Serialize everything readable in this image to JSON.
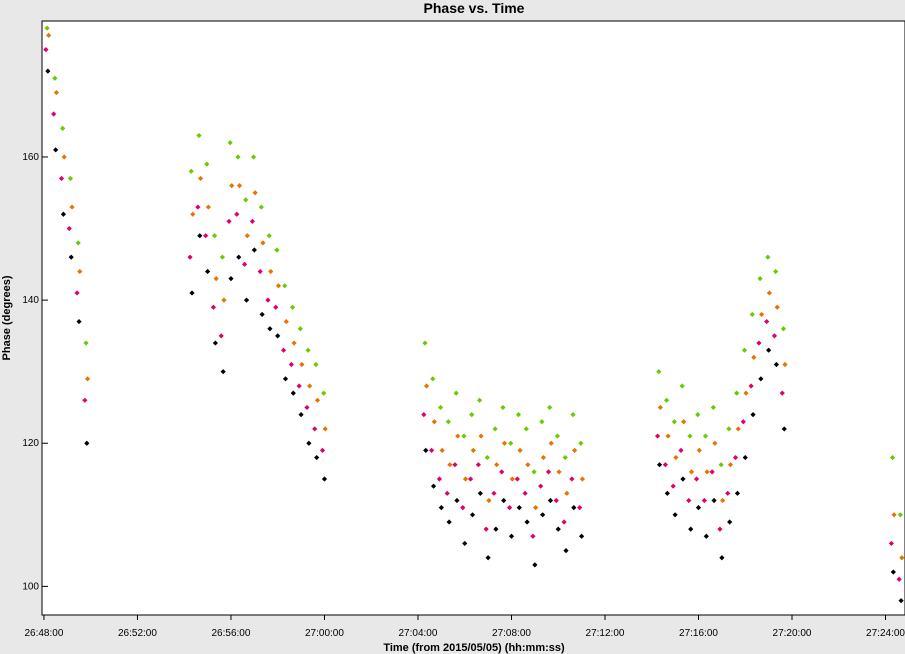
{
  "chart_data": {
    "type": "scatter",
    "title": "Phase vs. Time",
    "xlabel": "Time (from 2015/05/05) (hh:mm:ss)",
    "ylabel": "Phase (degrees)",
    "x_unit": "hh:mm:ss",
    "xlim": [
      "26:47:55",
      "27:24:50"
    ],
    "ylim": [
      96,
      179
    ],
    "x_ticks": [
      "26:48:00",
      "26:52:00",
      "26:56:00",
      "27:00:00",
      "27:04:00",
      "27:08:00",
      "27:12:00",
      "27:16:00",
      "27:20:00",
      "27:24:00"
    ],
    "y_ticks": [
      100,
      120,
      140,
      160
    ],
    "grid": false,
    "series_colors": [
      "#000000",
      "#e0006a",
      "#e87400",
      "#66cc00"
    ],
    "series": [
      {
        "color": "#000000",
        "x": [
          "26:48:10",
          "26:48:30",
          "26:48:50",
          "26:49:10",
          "26:49:30",
          "26:49:50",
          "26:54:20",
          "26:54:40",
          "26:55:00",
          "26:55:20",
          "26:55:40",
          "26:56:00",
          "26:56:20",
          "26:56:40",
          "26:57:00",
          "26:57:20",
          "26:57:40",
          "26:58:00",
          "26:58:20",
          "26:58:40",
          "26:59:00",
          "26:59:20",
          "26:59:40",
          "27:00:00",
          "27:04:20",
          "27:04:40",
          "27:05:00",
          "27:05:20",
          "27:05:40",
          "27:06:00",
          "27:06:20",
          "27:06:40",
          "27:07:00",
          "27:07:20",
          "27:07:40",
          "27:08:00",
          "27:08:20",
          "27:08:40",
          "27:09:00",
          "27:09:20",
          "27:09:40",
          "27:10:00",
          "27:10:20",
          "27:10:40",
          "27:11:00",
          "27:14:20",
          "27:14:40",
          "27:15:00",
          "27:15:20",
          "27:15:40",
          "27:16:00",
          "27:16:20",
          "27:16:40",
          "27:17:00",
          "27:17:20",
          "27:17:40",
          "27:18:00",
          "27:18:20",
          "27:18:40",
          "27:19:00",
          "27:19:20",
          "27:19:40",
          "27:24:20",
          "27:24:40"
        ],
        "y": [
          172,
          161,
          152,
          146,
          137,
          120,
          141,
          149,
          144,
          134,
          130,
          143,
          146,
          140,
          147,
          138,
          136,
          135,
          129,
          127,
          124,
          120,
          118,
          115,
          119,
          114,
          111,
          109,
          112,
          106,
          110,
          113,
          104,
          108,
          112,
          107,
          111,
          109,
          103,
          110,
          112,
          108,
          105,
          111,
          107,
          117,
          113,
          110,
          115,
          108,
          111,
          107,
          112,
          104,
          109,
          113,
          118,
          124,
          129,
          133,
          131,
          122,
          102,
          98
        ]
      },
      {
        "color": "#e0006a",
        "x": [
          "26:48:05",
          "26:48:25",
          "26:48:45",
          "26:49:05",
          "26:49:25",
          "26:49:45",
          "26:54:15",
          "26:54:35",
          "26:54:55",
          "26:55:15",
          "26:55:35",
          "26:55:55",
          "26:56:15",
          "26:56:35",
          "26:56:55",
          "26:57:15",
          "26:57:35",
          "26:57:55",
          "26:58:15",
          "26:58:35",
          "26:58:55",
          "26:59:15",
          "26:59:35",
          "26:59:55",
          "27:04:15",
          "27:04:35",
          "27:04:55",
          "27:05:15",
          "27:05:35",
          "27:05:55",
          "27:06:15",
          "27:06:35",
          "27:06:55",
          "27:07:15",
          "27:07:35",
          "27:07:55",
          "27:08:15",
          "27:08:35",
          "27:08:55",
          "27:09:15",
          "27:09:35",
          "27:09:55",
          "27:10:15",
          "27:10:35",
          "27:10:55",
          "27:14:15",
          "27:14:35",
          "27:14:55",
          "27:15:15",
          "27:15:35",
          "27:15:55",
          "27:16:15",
          "27:16:35",
          "27:16:55",
          "27:17:15",
          "27:17:35",
          "27:17:55",
          "27:18:15",
          "27:18:35",
          "27:18:55",
          "27:19:15",
          "27:19:35",
          "27:24:15",
          "27:24:35"
        ],
        "y": [
          175,
          166,
          157,
          150,
          141,
          126,
          146,
          153,
          149,
          139,
          135,
          151,
          152,
          145,
          151,
          144,
          140,
          139,
          133,
          131,
          128,
          125,
          122,
          119,
          124,
          119,
          115,
          113,
          117,
          111,
          115,
          117,
          108,
          113,
          116,
          111,
          115,
          113,
          107,
          114,
          116,
          112,
          109,
          115,
          111,
          121,
          117,
          114,
          119,
          112,
          115,
          112,
          116,
          108,
          113,
          118,
          123,
          128,
          134,
          137,
          135,
          127,
          106,
          101
        ]
      },
      {
        "color": "#e87400",
        "x": [
          "26:48:12",
          "26:48:32",
          "26:48:52",
          "26:49:12",
          "26:49:32",
          "26:49:52",
          "26:54:22",
          "26:54:42",
          "26:55:02",
          "26:55:22",
          "26:55:42",
          "26:56:02",
          "26:56:22",
          "26:56:42",
          "26:57:02",
          "26:57:22",
          "26:57:42",
          "26:58:02",
          "26:58:22",
          "26:58:42",
          "26:59:02",
          "26:59:22",
          "26:59:42",
          "27:00:02",
          "27:04:22",
          "27:04:42",
          "27:05:02",
          "27:05:22",
          "27:05:42",
          "27:06:02",
          "27:06:22",
          "27:06:42",
          "27:07:02",
          "27:07:22",
          "27:07:42",
          "27:08:02",
          "27:08:22",
          "27:08:42",
          "27:09:02",
          "27:09:22",
          "27:09:42",
          "27:10:02",
          "27:10:22",
          "27:10:42",
          "27:11:02",
          "27:14:22",
          "27:14:42",
          "27:15:02",
          "27:15:22",
          "27:15:42",
          "27:16:02",
          "27:16:22",
          "27:16:42",
          "27:17:02",
          "27:17:22",
          "27:17:42",
          "27:18:02",
          "27:18:22",
          "27:18:42",
          "27:19:02",
          "27:19:22",
          "27:19:42",
          "27:24:22",
          "27:24:42"
        ],
        "y": [
          177,
          169,
          160,
          153,
          144,
          129,
          152,
          157,
          153,
          143,
          140,
          156,
          156,
          149,
          155,
          148,
          144,
          142,
          137,
          134,
          131,
          128,
          126,
          122,
          128,
          123,
          119,
          117,
          121,
          115,
          119,
          121,
          112,
          117,
          120,
          115,
          119,
          117,
          111,
          118,
          120,
          116,
          113,
          119,
          115,
          125,
          121,
          118,
          123,
          116,
          119,
          116,
          120,
          112,
          117,
          122,
          127,
          132,
          138,
          141,
          139,
          131,
          110,
          104
        ]
      },
      {
        "color": "#66cc00",
        "x": [
          "26:48:08",
          "26:48:28",
          "26:48:48",
          "26:49:08",
          "26:49:28",
          "26:49:48",
          "26:54:18",
          "26:54:38",
          "26:54:58",
          "26:55:18",
          "26:55:38",
          "26:55:58",
          "26:56:18",
          "26:56:38",
          "26:56:58",
          "26:57:18",
          "26:57:38",
          "26:57:58",
          "26:58:18",
          "26:58:38",
          "26:58:58",
          "26:59:18",
          "26:59:38",
          "26:59:58",
          "27:04:18",
          "27:04:38",
          "27:04:58",
          "27:05:18",
          "27:05:38",
          "27:05:58",
          "27:06:18",
          "27:06:38",
          "27:06:58",
          "27:07:18",
          "27:07:38",
          "27:07:58",
          "27:08:18",
          "27:08:38",
          "27:08:58",
          "27:09:18",
          "27:09:38",
          "27:09:58",
          "27:10:18",
          "27:10:38",
          "27:10:58",
          "27:14:18",
          "27:14:38",
          "27:14:58",
          "27:15:18",
          "27:15:38",
          "27:15:58",
          "27:16:18",
          "27:16:38",
          "27:16:58",
          "27:17:18",
          "27:17:38",
          "27:17:58",
          "27:18:18",
          "27:18:38",
          "27:18:58",
          "27:19:18",
          "27:19:38",
          "27:24:18",
          "27:24:38"
        ],
        "y": [
          178,
          171,
          164,
          157,
          148,
          134,
          158,
          163,
          159,
          149,
          146,
          162,
          160,
          154,
          160,
          153,
          149,
          147,
          142,
          139,
          136,
          133,
          131,
          127,
          134,
          129,
          125,
          123,
          127,
          121,
          124,
          126,
          118,
          122,
          125,
          120,
          124,
          122,
          116,
          123,
          125,
          121,
          118,
          124,
          120,
          130,
          126,
          123,
          128,
          121,
          124,
          121,
          125,
          117,
          122,
          127,
          133,
          138,
          143,
          146,
          144,
          136,
          118,
          110
        ]
      }
    ]
  }
}
